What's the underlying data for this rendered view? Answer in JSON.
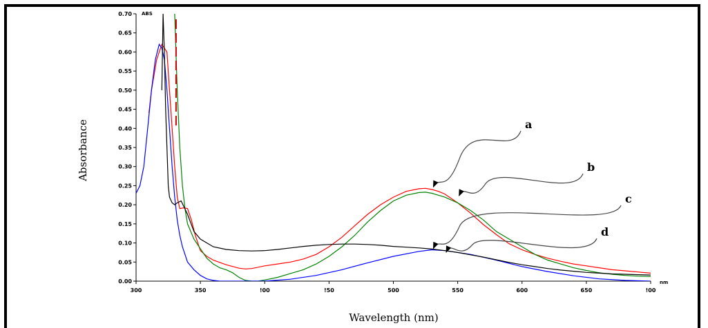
{
  "chart_data": {
    "type": "line",
    "xlabel": "Wavelength (nm)",
    "ylabel": "Absorbance",
    "y_unit": "ABS",
    "x_unit": "nm",
    "xlim": [
      300,
      700
    ],
    "ylim": [
      0,
      0.7
    ],
    "x_ticks": [
      "300",
      "350",
      "400",
      "450",
      "500",
      "550",
      "600",
      "650",
      "700"
    ],
    "x_tick_values": [
      300,
      350,
      400,
      450,
      500,
      550,
      600,
      650,
      700
    ],
    "x_tick_labels": [
      "300",
      "350",
      "!00",
      "!50",
      "500",
      "550",
      "600",
      "650",
      "!00"
    ],
    "y_tick_values": [
      0,
      0.05,
      0.1,
      0.15,
      0.2,
      0.25,
      0.3,
      0.35,
      0.4,
      0.45,
      0.5,
      0.55,
      0.6,
      0.65,
      0.7
    ],
    "y_tick_labels": [
      "0.00",
      "0.05",
      "0.10",
      "0.15",
      "0.20",
      "0.25",
      "0.30",
      "0.35",
      "0.40",
      "0.45",
      "0.50",
      "0.55",
      "0.60",
      "0.65",
      "0.70"
    ],
    "grid": false,
    "series": [
      {
        "color": "#ff0000",
        "x": [
          310,
          312,
          316,
          320,
          324,
          326,
          328,
          330,
          332,
          334,
          337,
          340,
          343,
          346,
          350,
          355,
          360,
          370,
          380,
          385,
          390,
          400,
          410,
          420,
          430,
          440,
          450,
          460,
          470,
          480,
          490,
          500,
          510,
          520,
          525,
          530,
          535,
          540,
          550,
          560,
          570,
          580,
          590,
          600,
          610,
          620,
          630,
          640,
          650,
          660,
          670,
          680,
          690,
          700
        ],
        "y": [
          0.44,
          0.5,
          0.58,
          0.62,
          0.6,
          0.5,
          0.4,
          0.3,
          0.22,
          0.19,
          0.192,
          0.19,
          0.16,
          0.12,
          0.08,
          0.065,
          0.055,
          0.043,
          0.034,
          0.032,
          0.033,
          0.04,
          0.045,
          0.05,
          0.058,
          0.07,
          0.09,
          0.115,
          0.145,
          0.175,
          0.2,
          0.22,
          0.235,
          0.242,
          0.243,
          0.24,
          0.235,
          0.228,
          0.205,
          0.178,
          0.148,
          0.122,
          0.098,
          0.082,
          0.07,
          0.06,
          0.052,
          0.045,
          0.04,
          0.035,
          0.03,
          0.027,
          0.024,
          0.021
        ]
      },
      {
        "color": "#008000",
        "x": [
          330,
          332,
          334,
          336,
          338,
          340,
          345,
          350,
          355,
          360,
          365,
          370,
          375,
          380,
          385,
          390,
          395,
          400,
          410,
          420,
          430,
          440,
          450,
          460,
          470,
          480,
          490,
          500,
          510,
          520,
          525,
          530,
          535,
          540,
          550,
          560,
          570,
          580,
          590,
          600,
          610,
          620,
          630,
          640,
          650,
          660,
          670,
          680,
          690,
          700
        ],
        "y": [
          0.7,
          0.5,
          0.35,
          0.25,
          0.19,
          0.15,
          0.11,
          0.085,
          0.06,
          0.045,
          0.035,
          0.03,
          0.022,
          0.01,
          0.002,
          0,
          0,
          0.003,
          0.01,
          0.02,
          0.03,
          0.045,
          0.065,
          0.09,
          0.12,
          0.155,
          0.185,
          0.21,
          0.225,
          0.232,
          0.233,
          0.23,
          0.225,
          0.22,
          0.205,
          0.185,
          0.16,
          0.13,
          0.11,
          0.09,
          0.07,
          0.055,
          0.045,
          0.035,
          0.028,
          0.022,
          0.018,
          0.015,
          0.013,
          0.012
        ]
      },
      {
        "color": "#0000ff",
        "x": [
          300,
          303,
          306,
          309,
          312,
          315,
          318,
          320,
          322,
          324,
          326,
          328,
          330,
          332,
          334,
          336,
          338,
          340,
          345,
          350,
          355,
          360,
          365,
          370,
          380,
          400,
          420,
          440,
          460,
          480,
          500,
          520,
          530,
          540,
          560,
          580,
          600,
          620,
          640,
          660,
          680,
          700
        ],
        "y": [
          0.23,
          0.25,
          0.3,
          0.4,
          0.5,
          0.58,
          0.62,
          0.61,
          0.58,
          0.5,
          0.4,
          0.3,
          0.22,
          0.16,
          0.12,
          0.09,
          0.07,
          0.05,
          0.03,
          0.015,
          0.006,
          0.002,
          0,
          0,
          0,
          0,
          0.005,
          0.015,
          0.03,
          0.048,
          0.065,
          0.078,
          0.082,
          0.08,
          0.07,
          0.055,
          0.038,
          0.025,
          0.014,
          0.006,
          0.002,
          0
        ]
      },
      {
        "color": "#000000",
        "x": [
          320,
          321,
          322,
          323,
          324,
          325,
          326,
          328,
          330,
          332,
          335,
          340,
          345,
          350,
          360,
          370,
          380,
          390,
          400,
          410,
          420,
          430,
          440,
          450,
          460,
          470,
          480,
          490,
          500,
          510,
          520,
          530,
          540,
          550,
          560,
          570,
          580,
          590,
          600,
          610,
          620,
          630,
          640,
          650,
          660,
          670,
          680,
          690,
          700
        ],
        "y": [
          0.5,
          0.7,
          0.6,
          0.45,
          0.35,
          0.25,
          0.22,
          0.205,
          0.2,
          0.205,
          0.21,
          0.175,
          0.13,
          0.11,
          0.09,
          0.083,
          0.08,
          0.079,
          0.08,
          0.083,
          0.087,
          0.091,
          0.094,
          0.096,
          0.097,
          0.097,
          0.096,
          0.094,
          0.091,
          0.089,
          0.087,
          0.084,
          0.08,
          0.075,
          0.069,
          0.063,
          0.056,
          0.049,
          0.043,
          0.038,
          0.033,
          0.029,
          0.026,
          0.023,
          0.021,
          0.019,
          0.018,
          0.017,
          0.016
        ]
      }
    ],
    "annotations": [
      {
        "label": "a",
        "target_x": 530,
        "target_y": 0.243
      },
      {
        "label": "b",
        "target_x": 550,
        "target_y": 0.22
      },
      {
        "label": "c",
        "target_x": 530,
        "target_y": 0.082
      },
      {
        "label": "d",
        "target_x": 540,
        "target_y": 0.072
      }
    ],
    "red_dash_x": 330
  }
}
